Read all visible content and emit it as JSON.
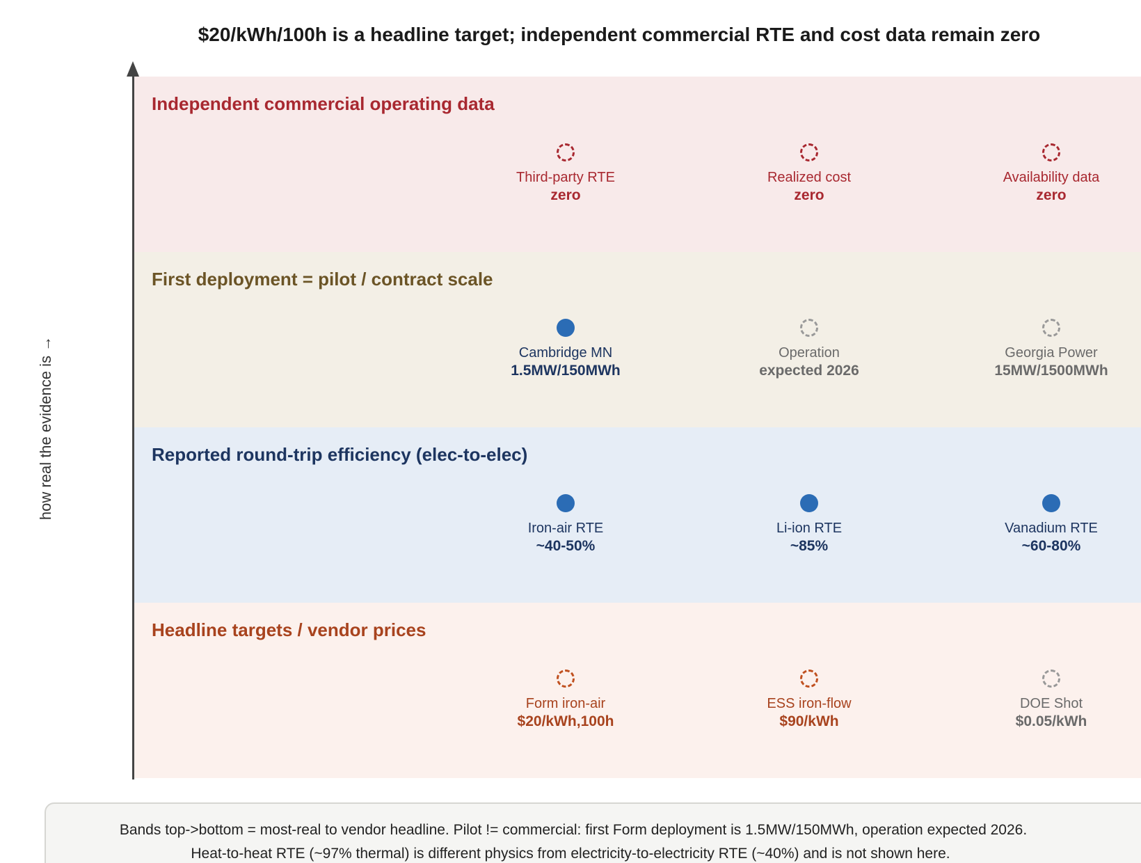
{
  "title": "$20/kWh/100h is a headline target; independent commercial RTE and cost data remain zero",
  "y_axis_label": "how real the evidence is →",
  "bands": [
    {
      "title": "Independent commercial operating data",
      "items": [
        {
          "label": "Third-party RTE",
          "value": "zero",
          "marker": "dashed-red"
        },
        {
          "label": "Realized cost",
          "value": "zero",
          "marker": "dashed-red"
        },
        {
          "label": "Availability data",
          "value": "zero",
          "marker": "dashed-red"
        }
      ]
    },
    {
      "title": "First deployment = pilot / contract scale",
      "items": [
        {
          "label": "Cambridge MN",
          "value": "1.5MW/150MWh",
          "marker": "solid-blue"
        },
        {
          "label": "Operation",
          "value": "expected 2026",
          "marker": "dashed-grey"
        },
        {
          "label": "Georgia Power",
          "value": "15MW/1500MWh",
          "marker": "dashed-grey"
        }
      ]
    },
    {
      "title": "Reported round-trip efficiency (elec-to-elec)",
      "items": [
        {
          "label": "Iron-air RTE",
          "value": "~40-50%",
          "marker": "solid-blue"
        },
        {
          "label": "Li-ion RTE",
          "value": "~85%",
          "marker": "solid-blue"
        },
        {
          "label": "Vanadium RTE",
          "value": "~60-80%",
          "marker": "solid-blue"
        }
      ]
    },
    {
      "title": "Headline targets / vendor prices",
      "items": [
        {
          "label": "Form iron-air",
          "value": "$20/kWh,100h",
          "marker": "dashed-orange"
        },
        {
          "label": "ESS iron-flow",
          "value": "$90/kWh",
          "marker": "dashed-orange"
        },
        {
          "label": "DOE Shot",
          "value": "$0.05/kWh",
          "marker": "dashed-grey"
        }
      ]
    }
  ],
  "note": {
    "line1": "Bands top->bottom = most-real to vendor headline. Pilot != commercial: first Form deployment is 1.5MW/150MWh, operation expected 2026.",
    "line2": "Heat-to-heat RTE (~97% thermal) is different physics from electricity-to-electricity RTE (~40%) and is not shown here."
  },
  "colors": {
    "solid_marker": "#2b6cb5",
    "red": "#a82830",
    "olive": "#6b5426",
    "navy": "#1d3560",
    "orange": "#a8431e",
    "grey": "#6a6a6a"
  }
}
